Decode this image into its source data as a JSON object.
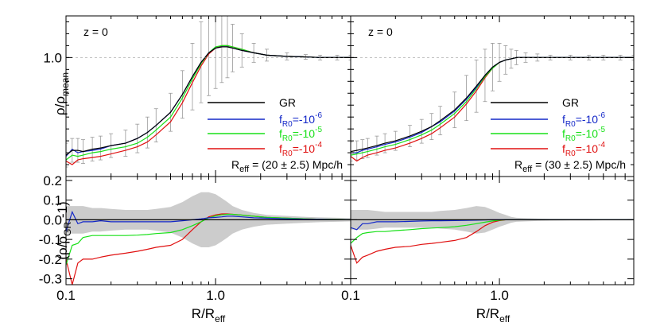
{
  "chart_data": {
    "type": "line",
    "layout": "2x2 panels, shared logarithmic x-axis per column; top row density profile, bottom row relative difference to GR",
    "xscale": "log",
    "xlim": [
      0.1,
      8.0
    ],
    "xlabel": "R/R_eff",
    "x_ticks": [
      0.1,
      1.0
    ],
    "x_tick_labels": [
      "0.1",
      "1.0"
    ],
    "colors": {
      "GR": "#000000",
      "fR6": "#1428c8",
      "fR5": "#18e018",
      "fR4": "#e01010",
      "band": "#cccccc",
      "errorbar": "#999999"
    },
    "top_row": {
      "ylabel": {
        "main": "ρ/ρ",
        "sub": "mean"
      },
      "ylim": [
        0.0,
        1.35
      ],
      "y_ticks": [
        1.0
      ],
      "y_tick_labels": [
        "1.0"
      ]
    },
    "bottom_row": {
      "ylabel": {
        "main": "(ρ/ρ",
        "sub": "GR",
        "tail": " -1)"
      },
      "ylim": [
        -0.33,
        0.22
      ],
      "y_ticks": [
        0.2,
        0.1,
        0.0,
        -0.1,
        -0.2,
        -0.3
      ],
      "y_tick_labels": [
        "0.2",
        "0.1",
        "0.0",
        "-0.1",
        "-0.2",
        "-0.3"
      ]
    },
    "legend": {
      "placement": "lower-right",
      "entries": [
        {
          "key": "GR",
          "label": "GR"
        },
        {
          "key": "fR6",
          "label_main": "f",
          "label_sub": "R0",
          "label_mid": "=-10",
          "label_sup": "-6"
        },
        {
          "key": "fR5",
          "label_main": "f",
          "label_sub": "R0",
          "label_mid": "=-10",
          "label_sup": "-5"
        },
        {
          "key": "fR4",
          "label_main": "f",
          "label_sub": "R0",
          "label_mid": "=-10",
          "label_sup": "-4"
        }
      ]
    },
    "panels": [
      {
        "redshift_label": "z = 0",
        "reff_label": {
          "main": "R",
          "sub": "eff",
          "tail": " = (20 ± 2.5) Mpc/h"
        },
        "x": [
          0.1,
          0.11,
          0.12,
          0.13,
          0.15,
          0.17,
          0.2,
          0.25,
          0.3,
          0.35,
          0.4,
          0.5,
          0.6,
          0.7,
          0.8,
          0.9,
          1.0,
          1.1,
          1.2,
          1.3,
          1.5,
          1.8,
          2.2,
          3.0,
          4.0,
          5.0,
          6.5,
          8.0
        ],
        "profiles": {
          "GR": [
            0.18,
            0.22,
            0.22,
            0.21,
            0.23,
            0.24,
            0.26,
            0.28,
            0.32,
            0.37,
            0.43,
            0.54,
            0.69,
            0.84,
            0.96,
            1.04,
            1.08,
            1.09,
            1.09,
            1.08,
            1.06,
            1.04,
            1.02,
            1.01,
            1.005,
            1.0,
            1.0,
            1.0
          ],
          "fR6": [
            0.17,
            0.23,
            0.2,
            0.21,
            0.22,
            0.23,
            0.26,
            0.28,
            0.32,
            0.37,
            0.43,
            0.54,
            0.69,
            0.84,
            0.96,
            1.04,
            1.08,
            1.09,
            1.09,
            1.08,
            1.06,
            1.04,
            1.02,
            1.01,
            1.005,
            1.0,
            1.0,
            1.0
          ],
          "fR5": [
            0.14,
            0.18,
            0.17,
            0.18,
            0.2,
            0.21,
            0.23,
            0.25,
            0.28,
            0.33,
            0.39,
            0.5,
            0.66,
            0.82,
            0.95,
            1.04,
            1.09,
            1.1,
            1.1,
            1.09,
            1.07,
            1.04,
            1.02,
            1.01,
            1.005,
            1.0,
            1.0,
            1.0
          ],
          "fR4": [
            0.13,
            0.1,
            0.14,
            0.15,
            0.16,
            0.17,
            0.19,
            0.22,
            0.25,
            0.29,
            0.35,
            0.46,
            0.62,
            0.79,
            0.93,
            1.03,
            1.08,
            1.1,
            1.1,
            1.09,
            1.07,
            1.04,
            1.02,
            1.01,
            1.005,
            1.0,
            1.0,
            1.0
          ]
        },
        "errorbar_halfwidth": [
          0.1,
          0.1,
          0.1,
          0.1,
          0.1,
          0.1,
          0.1,
          0.11,
          0.12,
          0.13,
          0.14,
          0.16,
          0.2,
          0.28,
          0.34,
          0.36,
          0.34,
          0.3,
          0.26,
          0.2,
          0.14,
          0.08,
          0.05,
          0.03,
          0.02,
          0.02,
          0.02,
          0.02
        ],
        "differences": {
          "GR": [
            0.0,
            0.0,
            0.0,
            0.0,
            0.0,
            0.0,
            0.0,
            0.0,
            0.0,
            0.0,
            0.0,
            0.0,
            0.0,
            0.0,
            0.0,
            0.0,
            0.0,
            0.0,
            0.0,
            0.0,
            0.0,
            0.0,
            0.0,
            0.0,
            0.0,
            0.0,
            0.0,
            0.0
          ],
          "fR6": [
            -0.06,
            0.04,
            -0.02,
            -0.01,
            -0.01,
            -0.005,
            -0.01,
            -0.01,
            -0.01,
            -0.01,
            -0.01,
            -0.01,
            -0.005,
            0.0,
            0.005,
            0.01,
            0.012,
            0.015,
            0.018,
            0.018,
            0.015,
            0.01,
            0.008,
            0.005,
            0.003,
            0.002,
            0.001,
            0.0
          ],
          "fR5": [
            -0.23,
            -0.13,
            -0.12,
            -0.09,
            -0.08,
            -0.08,
            -0.08,
            -0.08,
            -0.078,
            -0.075,
            -0.07,
            -0.065,
            -0.05,
            -0.03,
            -0.01,
            0.01,
            0.02,
            0.025,
            0.028,
            0.028,
            0.024,
            0.018,
            0.012,
            0.008,
            0.005,
            0.003,
            0.002,
            0.001
          ],
          "fR4": [
            -0.2,
            -0.33,
            -0.22,
            -0.2,
            -0.2,
            -0.19,
            -0.18,
            -0.17,
            -0.16,
            -0.15,
            -0.14,
            -0.13,
            -0.1,
            -0.05,
            -0.01,
            0.015,
            0.025,
            0.03,
            0.03,
            0.028,
            0.024,
            0.018,
            0.012,
            0.008,
            0.005,
            0.003,
            0.002,
            0.001
          ]
        },
        "band_halfwidth": [
          0.07,
          0.07,
          0.07,
          0.07,
          0.06,
          0.06,
          0.055,
          0.05,
          0.05,
          0.05,
          0.055,
          0.065,
          0.09,
          0.12,
          0.14,
          0.14,
          0.13,
          0.11,
          0.09,
          0.07,
          0.05,
          0.035,
          0.025,
          0.02,
          0.015,
          0.012,
          0.01,
          0.008
        ]
      },
      {
        "redshift_label": "z = 0",
        "reff_label": {
          "main": "R",
          "sub": "eff",
          "tail": " = (30 ± 2.5) Mpc/h"
        },
        "x": [
          0.1,
          0.11,
          0.12,
          0.13,
          0.15,
          0.17,
          0.2,
          0.25,
          0.3,
          0.35,
          0.4,
          0.5,
          0.6,
          0.7,
          0.8,
          0.9,
          1.0,
          1.1,
          1.2,
          1.3,
          1.5,
          1.8,
          2.2,
          3.0,
          4.0,
          5.0,
          6.5,
          8.0
        ],
        "profiles": {
          "GR": [
            0.21,
            0.22,
            0.23,
            0.24,
            0.26,
            0.28,
            0.3,
            0.34,
            0.38,
            0.42,
            0.47,
            0.56,
            0.66,
            0.76,
            0.85,
            0.92,
            0.96,
            0.98,
            0.99,
            1.0,
            1.0,
            1.0,
            1.0,
            1.0,
            1.0,
            1.0,
            1.0,
            1.0
          ],
          "fR6": [
            0.2,
            0.2,
            0.22,
            0.23,
            0.25,
            0.27,
            0.29,
            0.33,
            0.37,
            0.42,
            0.46,
            0.55,
            0.65,
            0.75,
            0.85,
            0.92,
            0.96,
            0.98,
            0.99,
            1.0,
            1.0,
            1.0,
            1.0,
            1.0,
            1.0,
            1.0,
            1.0,
            1.0
          ],
          "fR5": [
            0.18,
            0.19,
            0.2,
            0.21,
            0.23,
            0.25,
            0.27,
            0.31,
            0.35,
            0.39,
            0.44,
            0.53,
            0.63,
            0.74,
            0.84,
            0.91,
            0.96,
            0.98,
            0.99,
            1.0,
            1.0,
            1.0,
            1.0,
            1.0,
            1.0,
            1.0,
            1.0,
            1.0
          ],
          "fR4": [
            0.17,
            0.13,
            0.16,
            0.18,
            0.2,
            0.22,
            0.24,
            0.28,
            0.32,
            0.36,
            0.41,
            0.5,
            0.61,
            0.72,
            0.83,
            0.91,
            0.96,
            0.98,
            0.99,
            1.0,
            1.0,
            1.0,
            1.0,
            1.0,
            1.0,
            1.0,
            1.0,
            1.0
          ]
        },
        "errorbar_halfwidth": [
          0.08,
          0.08,
          0.08,
          0.08,
          0.08,
          0.08,
          0.08,
          0.09,
          0.1,
          0.11,
          0.12,
          0.15,
          0.19,
          0.22,
          0.22,
          0.2,
          0.16,
          0.12,
          0.08,
          0.06,
          0.04,
          0.03,
          0.02,
          0.02,
          0.02,
          0.02,
          0.02,
          0.02
        ],
        "differences": {
          "GR": [
            0.0,
            0.0,
            0.0,
            0.0,
            0.0,
            0.0,
            0.0,
            0.0,
            0.0,
            0.0,
            0.0,
            0.0,
            0.0,
            0.0,
            0.0,
            0.0,
            0.0,
            0.0,
            0.0,
            0.0,
            0.0,
            0.0,
            0.0,
            0.0,
            0.0,
            0.0,
            0.0,
            0.0
          ],
          "fR6": [
            -0.04,
            -0.05,
            -0.02,
            -0.02,
            -0.01,
            -0.01,
            -0.01,
            -0.008,
            -0.006,
            -0.005,
            -0.005,
            -0.004,
            -0.003,
            -0.002,
            -0.001,
            0.0,
            0.0,
            0.0,
            0.0,
            0.0,
            0.0,
            0.0,
            0.0,
            0.0,
            0.0,
            0.0,
            0.0,
            0.0
          ],
          "fR5": [
            -0.12,
            -0.09,
            -0.07,
            -0.065,
            -0.06,
            -0.06,
            -0.055,
            -0.05,
            -0.045,
            -0.042,
            -0.04,
            -0.035,
            -0.028,
            -0.02,
            -0.012,
            -0.006,
            -0.002,
            0.0,
            0.0,
            0.0,
            0.0,
            0.0,
            0.0,
            0.0,
            0.0,
            0.0,
            0.0,
            0.0
          ],
          "fR4": [
            -0.13,
            -0.22,
            -0.19,
            -0.18,
            -0.16,
            -0.15,
            -0.14,
            -0.135,
            -0.125,
            -0.12,
            -0.115,
            -0.105,
            -0.09,
            -0.06,
            -0.03,
            -0.012,
            -0.004,
            0.0,
            0.0,
            0.0,
            0.0,
            0.0,
            0.0,
            0.0,
            0.0,
            0.0,
            0.0,
            0.0
          ]
        },
        "band_halfwidth": [
          0.05,
          0.05,
          0.05,
          0.05,
          0.045,
          0.04,
          0.04,
          0.04,
          0.04,
          0.04,
          0.045,
          0.05,
          0.06,
          0.07,
          0.065,
          0.05,
          0.035,
          0.025,
          0.015,
          0.01,
          0.008,
          0.006,
          0.005,
          0.004,
          0.004,
          0.003,
          0.003,
          0.003
        ]
      }
    ]
  }
}
